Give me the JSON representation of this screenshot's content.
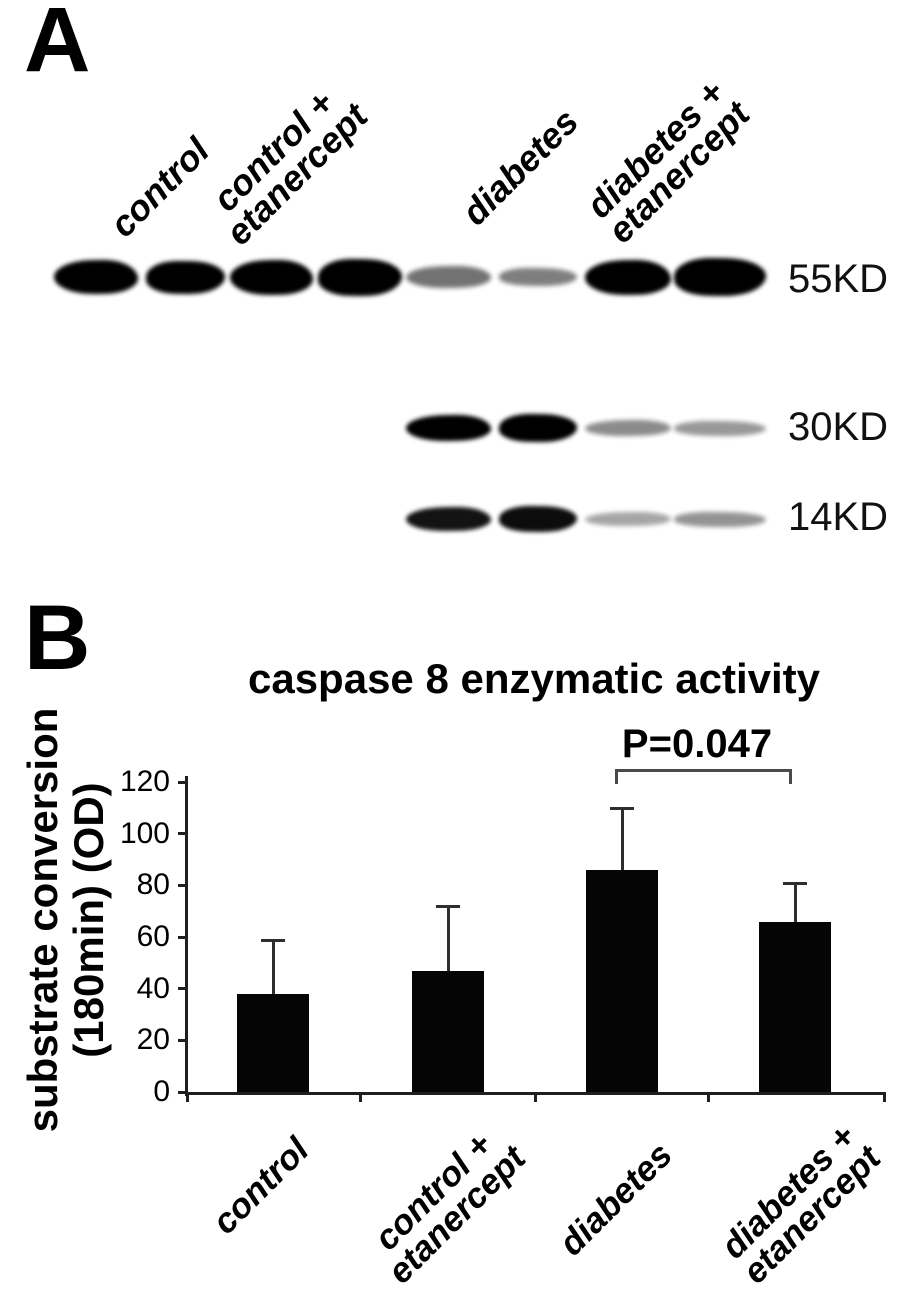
{
  "figure": {
    "background": "#ffffff",
    "ink": "#000000"
  },
  "panelA": {
    "label": "A",
    "group_labels": [
      [
        "control"
      ],
      [
        "control +",
        "etanercept"
      ],
      [
        "diabetes"
      ],
      [
        "diabetes +",
        "etanercept"
      ]
    ],
    "rows": [
      {
        "marker": "55KD",
        "bands": [
          {
            "lane": 1,
            "intensity": 1.0,
            "height": 34
          },
          {
            "lane": 2,
            "intensity": 1.0,
            "height": 33
          },
          {
            "lane": 3,
            "intensity": 1.0,
            "height": 35
          },
          {
            "lane": 4,
            "intensity": 1.0,
            "height": 37
          },
          {
            "lane": 5,
            "intensity": 0.55,
            "height": 22
          },
          {
            "lane": 6,
            "intensity": 0.5,
            "height": 18
          },
          {
            "lane": 7,
            "intensity": 1.0,
            "height": 35
          },
          {
            "lane": 8,
            "intensity": 1.0,
            "height": 38
          }
        ]
      },
      {
        "marker": "30KD",
        "bands": [
          {
            "lane": 5,
            "intensity": 1.0,
            "height": 26
          },
          {
            "lane": 6,
            "intensity": 1.0,
            "height": 28
          },
          {
            "lane": 7,
            "intensity": 0.45,
            "height": 16
          },
          {
            "lane": 8,
            "intensity": 0.4,
            "height": 15
          }
        ]
      },
      {
        "marker": "14KD",
        "bands": [
          {
            "lane": 5,
            "intensity": 0.92,
            "height": 24
          },
          {
            "lane": 6,
            "intensity": 0.95,
            "height": 26
          },
          {
            "lane": 7,
            "intensity": 0.35,
            "height": 14
          },
          {
            "lane": 8,
            "intensity": 0.42,
            "height": 15
          }
        ]
      }
    ]
  },
  "panelB": {
    "label": "B",
    "chart_data": {
      "type": "bar",
      "title": "caspase 8 enzymatic activity",
      "ylabel_lines": [
        "substrate conversion",
        "(180min) (OD)"
      ],
      "xlabel": "",
      "categories": [
        "control",
        "control + etanercept",
        "diabetes",
        "diabetes + etanercept"
      ],
      "categories_lines": [
        [
          "control"
        ],
        [
          "control +",
          "etanercept"
        ],
        [
          "diabetes"
        ],
        [
          "diabetes +",
          "etanercept"
        ]
      ],
      "values": [
        38,
        47,
        86,
        66
      ],
      "error_upper": [
        21,
        25,
        24,
        15
      ],
      "ylim": [
        0,
        120
      ],
      "yticks": [
        0,
        20,
        40,
        60,
        80,
        100,
        120
      ],
      "grid": "off",
      "legend": "none",
      "bar_color": "#050505",
      "annotation": {
        "text": "P=0.047",
        "from_category": "diabetes",
        "to_category": "diabetes + etanercept"
      }
    }
  }
}
